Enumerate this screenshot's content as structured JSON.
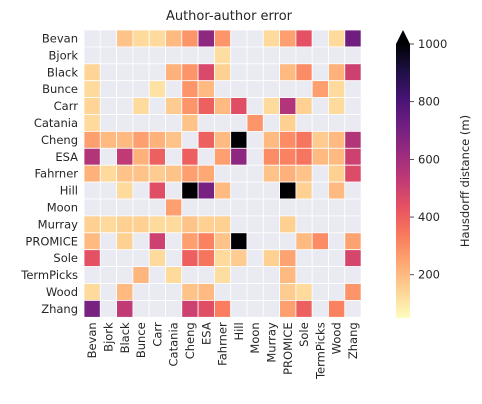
{
  "chart_data": {
    "type": "heatmap",
    "title": "Author-author error",
    "rows": [
      "Bevan",
      "Bjork",
      "Black",
      "Bunce",
      "Carr",
      "Catania",
      "Cheng",
      "ESA",
      "Fahrner",
      "Hill",
      "Moon",
      "Murray",
      "PROMICE",
      "Sole",
      "TermPicks",
      "Wood",
      "Zhang"
    ],
    "columns": [
      "Bevan",
      "Bjork",
      "Black",
      "Bunce",
      "Carr",
      "Catania",
      "Cheng",
      "ESA",
      "Fahrner",
      "Hill",
      "Moon",
      "Murray",
      "PROMICE",
      "Sole",
      "TermPicks",
      "Wood",
      "Zhang"
    ],
    "values": [
      [
        null,
        null,
        180,
        130,
        130,
        200,
        280,
        650,
        280,
        null,
        null,
        130,
        260,
        440,
        null,
        130,
        720
      ],
      [
        null,
        null,
        null,
        null,
        null,
        null,
        null,
        null,
        120,
        null,
        null,
        null,
        null,
        null,
        null,
        null,
        null
      ],
      [
        140,
        null,
        null,
        null,
        null,
        220,
        280,
        470,
        150,
        null,
        null,
        null,
        200,
        300,
        null,
        220,
        500
      ],
      [
        130,
        null,
        null,
        null,
        110,
        null,
        280,
        200,
        null,
        null,
        null,
        null,
        null,
        null,
        260,
        130,
        null
      ],
      [
        140,
        null,
        null,
        130,
        null,
        160,
        280,
        400,
        200,
        450,
        null,
        130,
        560,
        150,
        null,
        130,
        null
      ],
      [
        130,
        null,
        null,
        null,
        null,
        null,
        180,
        null,
        null,
        null,
        280,
        null,
        150,
        null,
        null,
        null,
        null
      ],
      [
        260,
        200,
        200,
        260,
        220,
        180,
        null,
        400,
        200,
        1000,
        null,
        200,
        300,
        350,
        160,
        200,
        560
      ],
      [
        560,
        null,
        530,
        220,
        400,
        null,
        400,
        null,
        260,
        650,
        null,
        300,
        320,
        350,
        200,
        200,
        500
      ],
      [
        220,
        130,
        180,
        180,
        160,
        180,
        260,
        240,
        null,
        null,
        null,
        180,
        220,
        180,
        null,
        150,
        460
      ],
      [
        null,
        null,
        130,
        null,
        450,
        null,
        1000,
        700,
        200,
        null,
        null,
        null,
        1000,
        150,
        null,
        200,
        null
      ],
      [
        null,
        null,
        null,
        null,
        null,
        260,
        null,
        null,
        null,
        null,
        null,
        null,
        null,
        null,
        null,
        null,
        null
      ],
      [
        150,
        130,
        150,
        150,
        130,
        130,
        180,
        150,
        150,
        null,
        null,
        null,
        150,
        null,
        null,
        null,
        null
      ],
      [
        200,
        null,
        150,
        null,
        500,
        null,
        260,
        320,
        180,
        1000,
        null,
        null,
        null,
        200,
        300,
        null,
        250
      ],
      [
        440,
        null,
        null,
        null,
        130,
        null,
        400,
        350,
        130,
        160,
        null,
        150,
        250,
        null,
        null,
        null,
        480
      ],
      [
        null,
        null,
        null,
        210,
        null,
        130,
        null,
        null,
        120,
        null,
        null,
        null,
        200,
        null,
        null,
        null,
        null
      ],
      [
        130,
        null,
        200,
        null,
        null,
        null,
        180,
        200,
        null,
        null,
        null,
        null,
        160,
        130,
        null,
        null,
        280
      ],
      [
        700,
        null,
        530,
        null,
        null,
        null,
        500,
        450,
        330,
        null,
        null,
        null,
        260,
        400,
        null,
        320,
        null
      ]
    ],
    "colorbar": {
      "label": "Hausdorff distance (m)",
      "range": [
        50,
        1000
      ],
      "ticks": [
        200,
        400,
        600,
        800,
        1000
      ],
      "extend": "max",
      "colormap": "magma_r"
    },
    "missing_color": "#eaeaf2",
    "grid_color": "#ffffff"
  }
}
